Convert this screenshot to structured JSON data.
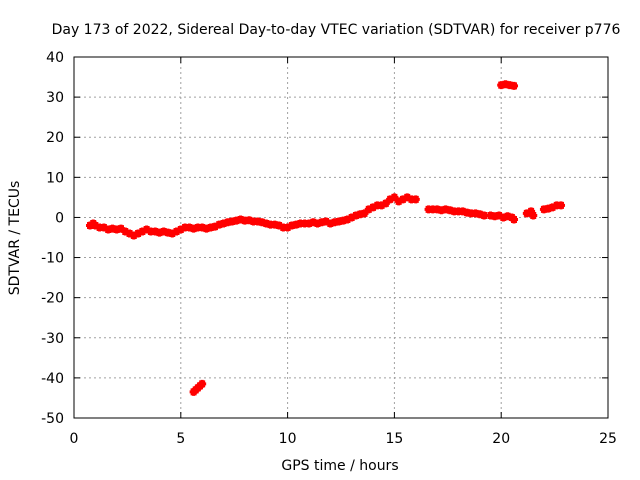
{
  "chart_data": {
    "type": "scatter",
    "title": "Day 173 of 2022, Sidereal Day-to-day VTEC variation (SDTVAR) for receiver p776",
    "xlabel": "GPS time / hours",
    "ylabel": "SDTVAR / TECUs",
    "xlim": [
      0,
      25
    ],
    "ylim": [
      -50,
      40
    ],
    "x_ticks": [
      0,
      5,
      10,
      15,
      20,
      25
    ],
    "x_tick_labels": [
      "0",
      "5",
      "10",
      "15",
      "20",
      "25"
    ],
    "y_ticks": [
      40,
      30,
      20,
      10,
      0,
      -10,
      -20,
      -30,
      -40,
      -50
    ],
    "y_tick_labels": [
      "40",
      "30",
      "20",
      "10",
      "0",
      "-10",
      "-20",
      "-30",
      "-40",
      "-50"
    ],
    "grid": true,
    "marker_color": "#ff0000",
    "series": [
      {
        "name": "SDTVAR",
        "points": [
          [
            0.75,
            -2.0
          ],
          [
            0.9,
            -1.5
          ],
          [
            1.0,
            -2.0
          ],
          [
            1.2,
            -2.5
          ],
          [
            1.4,
            -2.5
          ],
          [
            1.6,
            -3.0
          ],
          [
            1.8,
            -2.8
          ],
          [
            2.0,
            -3.0
          ],
          [
            2.2,
            -2.8
          ],
          [
            2.4,
            -3.5
          ],
          [
            2.6,
            -4.0
          ],
          [
            2.8,
            -4.5
          ],
          [
            3.0,
            -4.0
          ],
          [
            3.2,
            -3.5
          ],
          [
            3.4,
            -3.0
          ],
          [
            3.6,
            -3.5
          ],
          [
            3.8,
            -3.5
          ],
          [
            4.0,
            -3.8
          ],
          [
            4.2,
            -3.5
          ],
          [
            4.4,
            -3.8
          ],
          [
            4.6,
            -4.0
          ],
          [
            4.8,
            -3.5
          ],
          [
            5.0,
            -3.0
          ],
          [
            5.2,
            -2.5
          ],
          [
            5.4,
            -2.5
          ],
          [
            5.6,
            -2.8
          ],
          [
            5.8,
            -2.5
          ],
          [
            6.0,
            -2.5
          ],
          [
            6.2,
            -2.8
          ],
          [
            6.4,
            -2.5
          ],
          [
            6.6,
            -2.3
          ],
          [
            6.8,
            -1.8
          ],
          [
            7.0,
            -1.5
          ],
          [
            7.2,
            -1.2
          ],
          [
            7.4,
            -1.0
          ],
          [
            7.6,
            -0.8
          ],
          [
            7.8,
            -0.5
          ],
          [
            8.0,
            -0.8
          ],
          [
            8.2,
            -0.7
          ],
          [
            8.4,
            -1.0
          ],
          [
            8.6,
            -1.0
          ],
          [
            8.8,
            -1.2
          ],
          [
            9.0,
            -1.5
          ],
          [
            9.2,
            -1.8
          ],
          [
            9.4,
            -1.8
          ],
          [
            9.6,
            -2.0
          ],
          [
            9.8,
            -2.5
          ],
          [
            10.0,
            -2.5
          ],
          [
            10.2,
            -2.0
          ],
          [
            10.4,
            -1.8
          ],
          [
            10.6,
            -1.5
          ],
          [
            10.8,
            -1.5
          ],
          [
            11.0,
            -1.5
          ],
          [
            11.2,
            -1.2
          ],
          [
            11.4,
            -1.5
          ],
          [
            11.6,
            -1.2
          ],
          [
            11.8,
            -1.0
          ],
          [
            12.0,
            -1.5
          ],
          [
            12.2,
            -1.2
          ],
          [
            12.4,
            -1.0
          ],
          [
            12.6,
            -0.8
          ],
          [
            12.8,
            -0.5
          ],
          [
            13.0,
            0.0
          ],
          [
            13.2,
            0.5
          ],
          [
            13.4,
            0.8
          ],
          [
            13.6,
            1.0
          ],
          [
            13.8,
            2.0
          ],
          [
            14.0,
            2.5
          ],
          [
            14.2,
            3.0
          ],
          [
            14.4,
            3.0
          ],
          [
            14.6,
            3.5
          ],
          [
            14.8,
            4.5
          ],
          [
            15.0,
            5.0
          ],
          [
            15.2,
            4.0
          ],
          [
            15.4,
            4.5
          ],
          [
            15.6,
            5.0
          ],
          [
            15.8,
            4.5
          ],
          [
            16.0,
            4.5
          ],
          [
            16.6,
            2.0
          ],
          [
            16.8,
            2.0
          ],
          [
            17.0,
            2.0
          ],
          [
            17.2,
            1.8
          ],
          [
            17.4,
            2.0
          ],
          [
            17.6,
            1.8
          ],
          [
            17.8,
            1.5
          ],
          [
            18.0,
            1.5
          ],
          [
            18.2,
            1.5
          ],
          [
            18.4,
            1.2
          ],
          [
            18.6,
            1.0
          ],
          [
            18.8,
            1.0
          ],
          [
            19.0,
            0.8
          ],
          [
            19.2,
            0.5
          ],
          [
            19.5,
            0.5
          ],
          [
            19.7,
            0.3
          ],
          [
            19.9,
            0.5
          ],
          [
            20.1,
            0.0
          ],
          [
            20.3,
            0.3
          ],
          [
            20.5,
            0.0
          ],
          [
            20.6,
            -0.5
          ],
          [
            21.2,
            1.0
          ],
          [
            21.4,
            1.5
          ],
          [
            21.5,
            0.5
          ],
          [
            22.0,
            2.0
          ],
          [
            22.2,
            2.2
          ],
          [
            22.4,
            2.5
          ],
          [
            22.6,
            3.0
          ],
          [
            22.8,
            3.0
          ],
          [
            5.6,
            -43.5
          ],
          [
            5.7,
            -43.0
          ],
          [
            5.8,
            -42.5
          ],
          [
            5.9,
            -42.0
          ],
          [
            6.0,
            -41.5
          ],
          [
            20.0,
            33.0
          ],
          [
            20.2,
            33.2
          ],
          [
            20.4,
            33.0
          ],
          [
            20.6,
            32.8
          ]
        ]
      }
    ]
  }
}
